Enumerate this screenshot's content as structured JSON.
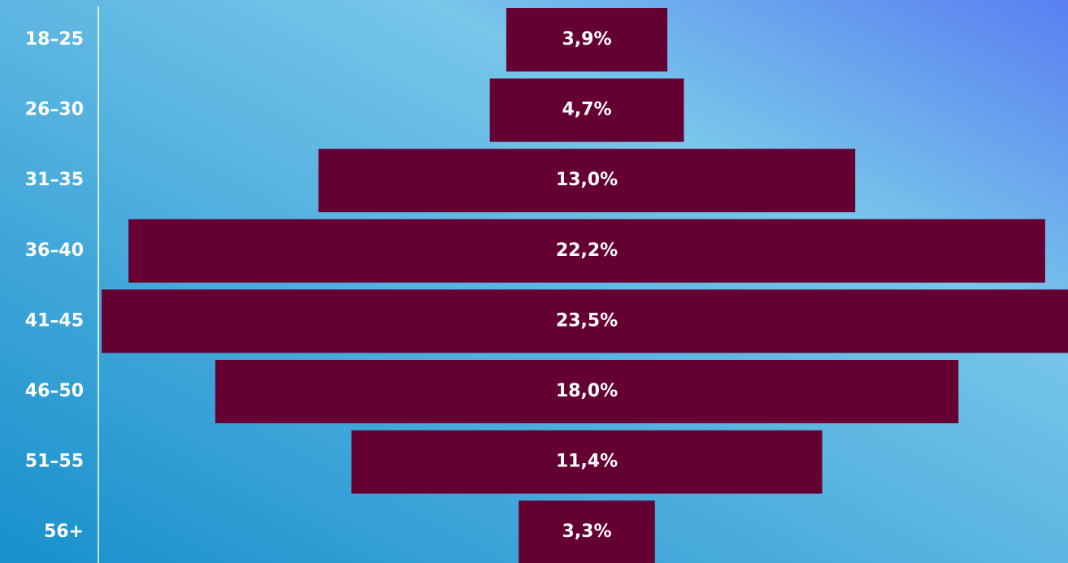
{
  "chart_data": {
    "type": "funnel",
    "categories": [
      "18–25",
      "26–30",
      "31–35",
      "36–40",
      "41–45",
      "46–50",
      "51–55",
      "56+"
    ],
    "values": [
      3.9,
      4.7,
      13.0,
      22.2,
      23.5,
      18.0,
      11.4,
      3.3
    ],
    "value_labels": [
      "3,9%",
      "4,7%",
      "13,0%",
      "22,2%",
      "23,5%",
      "18,0%",
      "11,4%",
      "3,3%"
    ],
    "color": "#640032"
  }
}
